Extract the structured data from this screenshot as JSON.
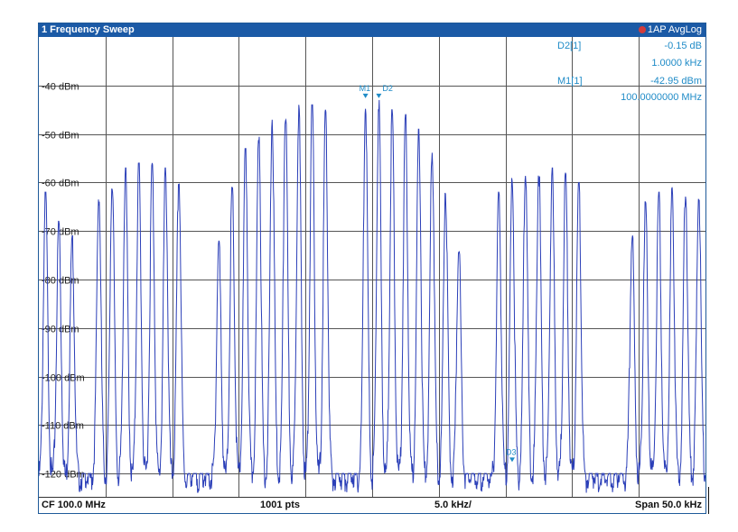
{
  "window": {
    "title": "1 Frequency Sweep",
    "trace_badge": "1AP AvgLog"
  },
  "footer": {
    "center_freq": "CF 100.0 MHz",
    "points": "1001 pts",
    "per_div": "5.0 kHz/",
    "span": "Span 50.0 kHz"
  },
  "markers": {
    "d2_label": "D2[1]",
    "d2_level": "-0.15 dB",
    "d2_freq": "1.0000 kHz",
    "m1_label": "M1[1]",
    "m1_level": "-42.95 dBm",
    "m1_freq": "100.0000000 MHz",
    "plot_labels": [
      "M1",
      "D2",
      "D3"
    ]
  },
  "colors": {
    "trace": "#2b3fb8",
    "marker": "#1f8bc7",
    "titlebar": "#1b5aa6",
    "grid": "#555555"
  },
  "chart_data": {
    "type": "line",
    "x_unit": "kHz offset from CF",
    "xlim": [
      -25,
      25
    ],
    "ylim": [
      -125,
      -30
    ],
    "y_ticks": [
      -40,
      -50,
      -60,
      -70,
      -80,
      -90,
      -100,
      -110,
      -120
    ],
    "y_tick_labels": [
      "-40 dBm",
      "-50 dBm",
      "-60 dBm",
      "-70 dBm",
      "-80 dBm",
      "-90 dBm",
      "-100 dBm",
      "-110 dBm",
      "-120 dBm"
    ],
    "grid": true,
    "x_divisions": 10,
    "noise_floor": -121,
    "series": [
      {
        "peaks_x": [
          -24.5,
          -23.5,
          -22.5,
          -21.5,
          -20.5,
          -19.5,
          -18.5,
          -17.5,
          -16.5,
          -15.5,
          -14.5,
          -13.5,
          -12.5,
          -11.5,
          -10.5,
          -9.5,
          -8.5,
          -7.5,
          -6.5,
          -5.5,
          -4.5,
          -3.5,
          -2.5,
          -1.5,
          -0.5,
          0.5,
          1.5,
          2.5,
          3.5,
          4.5,
          5.5,
          6.5,
          7.5,
          8.5,
          9.5,
          10.5,
          11.5,
          12.5,
          13.5,
          14.5,
          15.5,
          16.5,
          17.5,
          18.5,
          19.5,
          20.5,
          21.5,
          22.5,
          23.5,
          24.5
        ],
        "peaks_y": [
          -62,
          -68,
          -71,
          -120,
          -62,
          -59,
          -57,
          -56,
          -56,
          -57,
          -59,
          -120,
          -120,
          -72,
          -61,
          -53,
          -49,
          -47,
          -45,
          -44,
          -44,
          -45,
          -120,
          -120,
          -43,
          -43,
          -45,
          -46,
          -49,
          -53,
          -61,
          -72,
          -120,
          -120,
          -62,
          -59,
          -57,
          -57,
          -57,
          -58,
          -60,
          -120,
          -120,
          -120,
          -70,
          -64,
          -62,
          -61,
          -61,
          -62
        ]
      }
    ]
  }
}
